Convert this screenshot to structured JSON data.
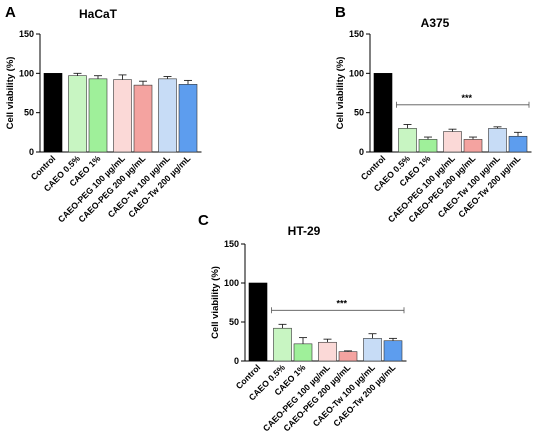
{
  "chart_data": [
    {
      "panel": "A",
      "title": "HaCaT",
      "type": "bar",
      "ylabel": "Cell viability (%)",
      "ylim": [
        0,
        150
      ],
      "yticks": [
        "0",
        "50",
        "100",
        "150"
      ],
      "categories": [
        "Control",
        "CAEO 0.5%",
        "CAEO 1%",
        "CAEO-PEG 100 µg/mL",
        "CAEO-PEG 200 µg/mL",
        "CAEO-Tw 100 µg/mL",
        "CAEO-Tw 200 µg/mL"
      ],
      "values": [
        100,
        97,
        93,
        92,
        85,
        93,
        86
      ],
      "errors": [
        0,
        3,
        4,
        6,
        5,
        3,
        5
      ],
      "colors": [
        "#000000",
        "#c8f5c2",
        "#9ff09a",
        "#fbd9d7",
        "#f4a3a0",
        "#c7dcf6",
        "#5d9dee"
      ],
      "significance": ""
    },
    {
      "panel": "B",
      "title": "A375",
      "type": "bar",
      "ylabel": "Cell viability (%)",
      "ylim": [
        0,
        150
      ],
      "yticks": [
        "0",
        "50",
        "100",
        "150"
      ],
      "categories": [
        "Control",
        "CAEO 0.5%",
        "CAEO 1%",
        "CAEO-PEG 100 µg/mL",
        "CAEO-PEG 200 µg/mL",
        "CAEO-Tw 100 µg/mL",
        "CAEO-Tw 200 µg/mL"
      ],
      "values": [
        100,
        30,
        16,
        26,
        16,
        30,
        20
      ],
      "errors": [
        0,
        5,
        3,
        3,
        3,
        2,
        5
      ],
      "colors": [
        "#000000",
        "#c8f5c2",
        "#9ff09a",
        "#fbd9d7",
        "#f4a3a0",
        "#c7dcf6",
        "#5d9dee"
      ],
      "significance": "***"
    },
    {
      "panel": "C",
      "title": "HT-29",
      "type": "bar",
      "ylabel": "Cell viability (%)",
      "ylim": [
        0,
        150
      ],
      "yticks": [
        "0",
        "50",
        "100",
        "150"
      ],
      "categories": [
        "Control",
        "CAEO 0.5%",
        "CAEO 1%",
        "CAEO-PEG 100 µg/mL",
        "CAEO-PEG 200 µg/mL",
        "CAEO-Tw 100 µg/mL",
        "CAEO-Tw 200 µg/mL"
      ],
      "values": [
        100,
        42,
        22,
        24,
        12,
        29,
        26
      ],
      "errors": [
        0,
        5,
        8,
        4,
        1,
        6,
        3
      ],
      "colors": [
        "#000000",
        "#c8f5c2",
        "#9ff09a",
        "#fbd9d7",
        "#f4a3a0",
        "#c7dcf6",
        "#5d9dee"
      ],
      "significance": "***"
    }
  ]
}
